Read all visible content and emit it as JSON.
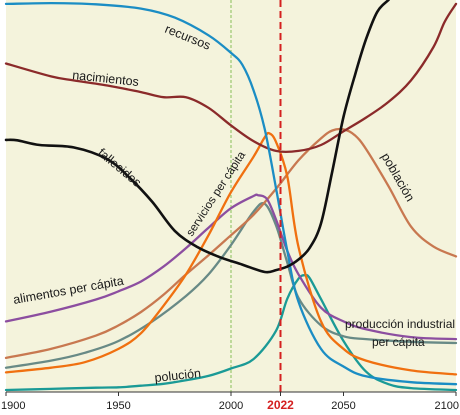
{
  "chart_data": {
    "type": "line",
    "title": "",
    "xlabel": "",
    "ylabel": "",
    "xlim": [
      1900,
      2100
    ],
    "x_ticks": [
      1900,
      1950,
      2000,
      2022,
      2050,
      2100
    ],
    "highlight_year": 2022,
    "reference_year": 2000,
    "grid": false,
    "legend": "inline",
    "colors": {
      "background": "#f4f3dc",
      "highlight": "#d42020",
      "reference": "#9bc86e"
    },
    "series": [
      {
        "name": "recursos",
        "color": "#1b8dc4",
        "points": [
          [
            1900,
            0.99
          ],
          [
            1920,
            0.992
          ],
          [
            1940,
            0.989
          ],
          [
            1960,
            0.978
          ],
          [
            1975,
            0.955
          ],
          [
            1990,
            0.91
          ],
          [
            2000,
            0.865
          ],
          [
            2005,
            0.835
          ],
          [
            2010,
            0.77
          ],
          [
            2015,
            0.67
          ],
          [
            2020,
            0.52
          ],
          [
            2025,
            0.36
          ],
          [
            2030,
            0.23
          ],
          [
            2040,
            0.11
          ],
          [
            2050,
            0.065
          ],
          [
            2060,
            0.04
          ],
          [
            2080,
            0.025
          ],
          [
            2100,
            0.02
          ]
        ]
      },
      {
        "name": "nacimientos",
        "color": "#8b2a2a",
        "points": [
          [
            1900,
            0.838
          ],
          [
            1920,
            0.805
          ],
          [
            1930,
            0.795
          ],
          [
            1945,
            0.782
          ],
          [
            1960,
            0.765
          ],
          [
            1970,
            0.752
          ],
          [
            1980,
            0.752
          ],
          [
            1990,
            0.725
          ],
          [
            2000,
            0.68
          ],
          [
            2010,
            0.64
          ],
          [
            2020,
            0.615
          ],
          [
            2030,
            0.615
          ],
          [
            2040,
            0.63
          ],
          [
            2050,
            0.665
          ],
          [
            2060,
            0.7
          ],
          [
            2070,
            0.74
          ],
          [
            2080,
            0.795
          ],
          [
            2090,
            0.88
          ],
          [
            2095,
            0.945
          ],
          [
            2100,
            0.99
          ]
        ]
      },
      {
        "name": "fallecidos",
        "color": "#111111",
        "points": [
          [
            1900,
            0.643
          ],
          [
            1905,
            0.642
          ],
          [
            1915,
            0.63
          ],
          [
            1930,
            0.624
          ],
          [
            1945,
            0.594
          ],
          [
            1955,
            0.546
          ],
          [
            1965,
            0.485
          ],
          [
            1975,
            0.411
          ],
          [
            1985,
            0.37
          ],
          [
            1995,
            0.344
          ],
          [
            2005,
            0.325
          ],
          [
            2015,
            0.306
          ],
          [
            2020,
            0.311
          ],
          [
            2025,
            0.32
          ],
          [
            2030,
            0.338
          ],
          [
            2035,
            0.368
          ],
          [
            2040,
            0.43
          ],
          [
            2045,
            0.563
          ],
          [
            2050,
            0.702
          ],
          [
            2055,
            0.807
          ],
          [
            2060,
            0.9
          ],
          [
            2065,
            0.97
          ],
          [
            2070,
            1.0
          ]
        ]
      },
      {
        "name": "servicios per cápita",
        "color": "#f07010",
        "points": [
          [
            1900,
            0.05
          ],
          [
            1920,
            0.062
          ],
          [
            1935,
            0.076
          ],
          [
            1950,
            0.11
          ],
          [
            1960,
            0.15
          ],
          [
            1970,
            0.22
          ],
          [
            1980,
            0.3
          ],
          [
            1990,
            0.4
          ],
          [
            2000,
            0.51
          ],
          [
            2010,
            0.6
          ],
          [
            2015,
            0.65
          ],
          [
            2017,
            0.66
          ],
          [
            2020,
            0.638
          ],
          [
            2025,
            0.55
          ],
          [
            2030,
            0.37
          ],
          [
            2040,
            0.18
          ],
          [
            2050,
            0.11
          ],
          [
            2060,
            0.08
          ],
          [
            2080,
            0.055
          ],
          [
            2100,
            0.045
          ]
        ]
      },
      {
        "name": "alimentos per cápita",
        "color": "#8c4ea0",
        "points": [
          [
            1900,
            0.18
          ],
          [
            1920,
            0.205
          ],
          [
            1940,
            0.236
          ],
          [
            1950,
            0.257
          ],
          [
            1960,
            0.282
          ],
          [
            1970,
            0.32
          ],
          [
            1980,
            0.367
          ],
          [
            1990,
            0.419
          ],
          [
            2000,
            0.469
          ],
          [
            2010,
            0.5
          ],
          [
            2012,
            0.502
          ],
          [
            2016,
            0.492
          ],
          [
            2020,
            0.44
          ],
          [
            2025,
            0.36
          ],
          [
            2030,
            0.3
          ],
          [
            2040,
            0.215
          ],
          [
            2050,
            0.18
          ],
          [
            2060,
            0.16
          ],
          [
            2080,
            0.14
          ],
          [
            2100,
            0.135
          ]
        ]
      },
      {
        "name": "población",
        "color": "#c87850",
        "points": [
          [
            1900,
            0.087
          ],
          [
            1920,
            0.11
          ],
          [
            1940,
            0.144
          ],
          [
            1950,
            0.17
          ],
          [
            1960,
            0.204
          ],
          [
            1970,
            0.248
          ],
          [
            1980,
            0.3
          ],
          [
            1990,
            0.349
          ],
          [
            2000,
            0.4
          ],
          [
            2010,
            0.452
          ],
          [
            2020,
            0.518
          ],
          [
            2030,
            0.591
          ],
          [
            2040,
            0.647
          ],
          [
            2045,
            0.667
          ],
          [
            2050,
            0.67
          ],
          [
            2055,
            0.655
          ],
          [
            2060,
            0.62
          ],
          [
            2070,
            0.525
          ],
          [
            2080,
            0.422
          ],
          [
            2090,
            0.371
          ],
          [
            2100,
            0.346
          ]
        ]
      },
      {
        "name": "producción industrial",
        "color": "#688a86",
        "points": [
          [
            1900,
            0.062
          ],
          [
            1920,
            0.08
          ],
          [
            1935,
            0.1
          ],
          [
            1950,
            0.13
          ],
          [
            1965,
            0.18
          ],
          [
            1980,
            0.245
          ],
          [
            1990,
            0.3
          ],
          [
            2000,
            0.375
          ],
          [
            2010,
            0.46
          ],
          [
            2015,
            0.48
          ],
          [
            2020,
            0.425
          ],
          [
            2025,
            0.33
          ],
          [
            2030,
            0.24
          ],
          [
            2040,
            0.17
          ],
          [
            2050,
            0.142
          ],
          [
            2060,
            0.135
          ],
          [
            2080,
            0.128
          ],
          [
            2100,
            0.125
          ]
        ]
      },
      {
        "name": "polución",
        "color": "#1a9a96",
        "points": [
          [
            1900,
            0.005
          ],
          [
            1920,
            0.008
          ],
          [
            1940,
            0.011
          ],
          [
            1950,
            0.012
          ],
          [
            1960,
            0.016
          ],
          [
            1970,
            0.021
          ],
          [
            1980,
            0.03
          ],
          [
            1990,
            0.041
          ],
          [
            2000,
            0.06
          ],
          [
            2010,
            0.084
          ],
          [
            2020,
            0.156
          ],
          [
            2025,
            0.238
          ],
          [
            2030,
            0.289
          ],
          [
            2033,
            0.298
          ],
          [
            2035,
            0.29
          ],
          [
            2040,
            0.237
          ],
          [
            2050,
            0.13
          ],
          [
            2060,
            0.052
          ],
          [
            2070,
            0.02
          ],
          [
            2080,
            0.01
          ],
          [
            2100,
            0.005
          ]
        ]
      }
    ]
  },
  "labels": {
    "recursos": "recursos",
    "nacimientos": "nacimientos",
    "fallecidos": "fallecidos",
    "servicios": "servicios per cápita",
    "alimentos": "alimentos per cápita",
    "poblacion": "población",
    "produccion_1": "producción industrial",
    "produccion_2": "per cápita",
    "polucion": "polución"
  }
}
